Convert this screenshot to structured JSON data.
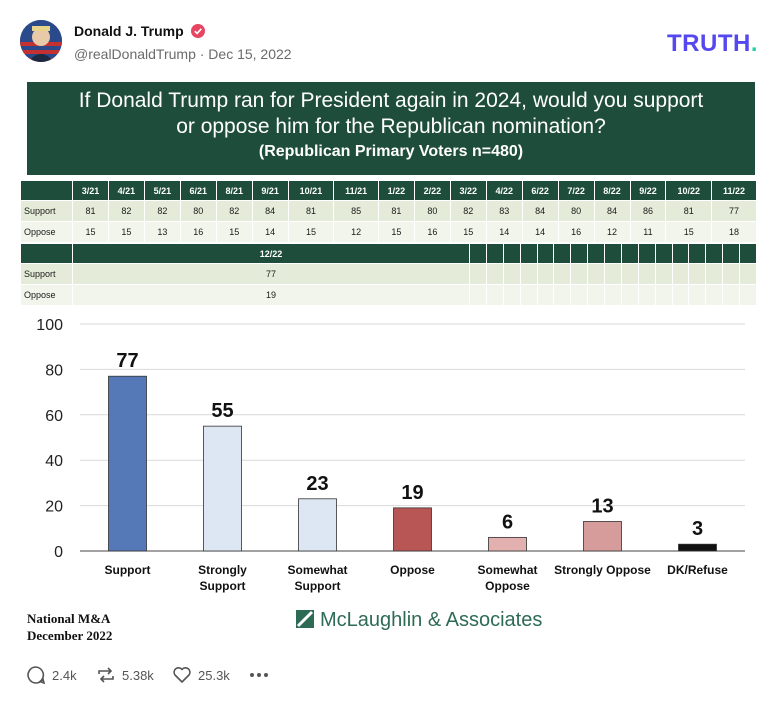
{
  "post": {
    "author": "Donald J. Trump",
    "handle_date": "@realDonaldTrump · Dec 15, 2022",
    "logo_text": "TRUTH",
    "logo_dot": "."
  },
  "banner": {
    "question_line1": "If Donald Trump ran for President again in 2024, would you support",
    "question_line2": "or oppose him for the Republican nomination?",
    "subtitle": "(Republican Primary Voters n=480)"
  },
  "table": {
    "dates": [
      "3/21",
      "4/21",
      "5/21",
      "6/21",
      "8/21",
      "9/21",
      "10/21",
      "11/21",
      "1/22",
      "2/22",
      "3/22",
      "4/22",
      "6/22",
      "7/22",
      "8/22",
      "9/22",
      "10/22",
      "11/22"
    ],
    "support": [
      "81",
      "82",
      "82",
      "80",
      "82",
      "84",
      "81",
      "85",
      "81",
      "80",
      "82",
      "83",
      "84",
      "80",
      "84",
      "86",
      "81",
      "77"
    ],
    "oppose": [
      "15",
      "15",
      "13",
      "16",
      "15",
      "14",
      "15",
      "12",
      "15",
      "16",
      "15",
      "14",
      "14",
      "16",
      "12",
      "11",
      "15",
      "18"
    ],
    "dates2": [
      "12/22"
    ],
    "support2": [
      "77"
    ],
    "oppose2": [
      "19"
    ],
    "support_label": "Support",
    "oppose_label": "Oppose"
  },
  "chart_data": {
    "type": "bar",
    "categories": [
      [
        "Support"
      ],
      [
        "Strongly",
        "Support"
      ],
      [
        "Somewhat",
        "Support"
      ],
      [
        "Oppose"
      ],
      [
        "Somewhat",
        "Oppose"
      ],
      [
        "Strongly Oppose"
      ],
      [
        "DK/Refuse"
      ]
    ],
    "values": [
      77,
      55,
      23,
      19,
      6,
      13,
      3
    ],
    "colors": [
      "#5579b6",
      "#dde6f3",
      "#dde6f3",
      "#b85656",
      "#e3b0b0",
      "#d69c9c",
      "#111111"
    ],
    "ylim": [
      0,
      100
    ],
    "yticks": [
      0,
      20,
      40,
      60,
      80,
      100
    ],
    "grid": true,
    "title": "",
    "xlabel": "",
    "ylabel": ""
  },
  "footer": {
    "source_line1": "National M&A",
    "source_line2": "December 2022",
    "firm": "McLaughlin & Associates"
  },
  "actions": {
    "replies": "2.4k",
    "retruths": "5.38k",
    "likes": "25.3k"
  }
}
